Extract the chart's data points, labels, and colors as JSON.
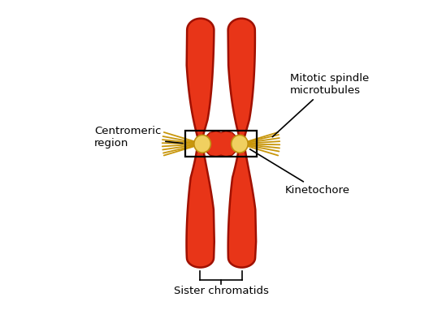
{
  "bg_color": "#ffffff",
  "chromatid_color": "#e83518",
  "chromatid_edge_color": "#a01000",
  "kinetochore_color": "#f0d060",
  "kinetochore_edge_color": "#c09010",
  "spindle_color": "#c8960a",
  "box_color": "#000000",
  "text_color": "#000000",
  "labels": {
    "centromeric_region": "Centromeric\nregion",
    "mitotic_spindle": "Mitotic spindle\nmicrotubules",
    "kinetochore": "Kinetochore",
    "sister_chromatids": "Sister chromatids"
  },
  "figsize": [
    5.44,
    3.98
  ],
  "dpi": 100
}
